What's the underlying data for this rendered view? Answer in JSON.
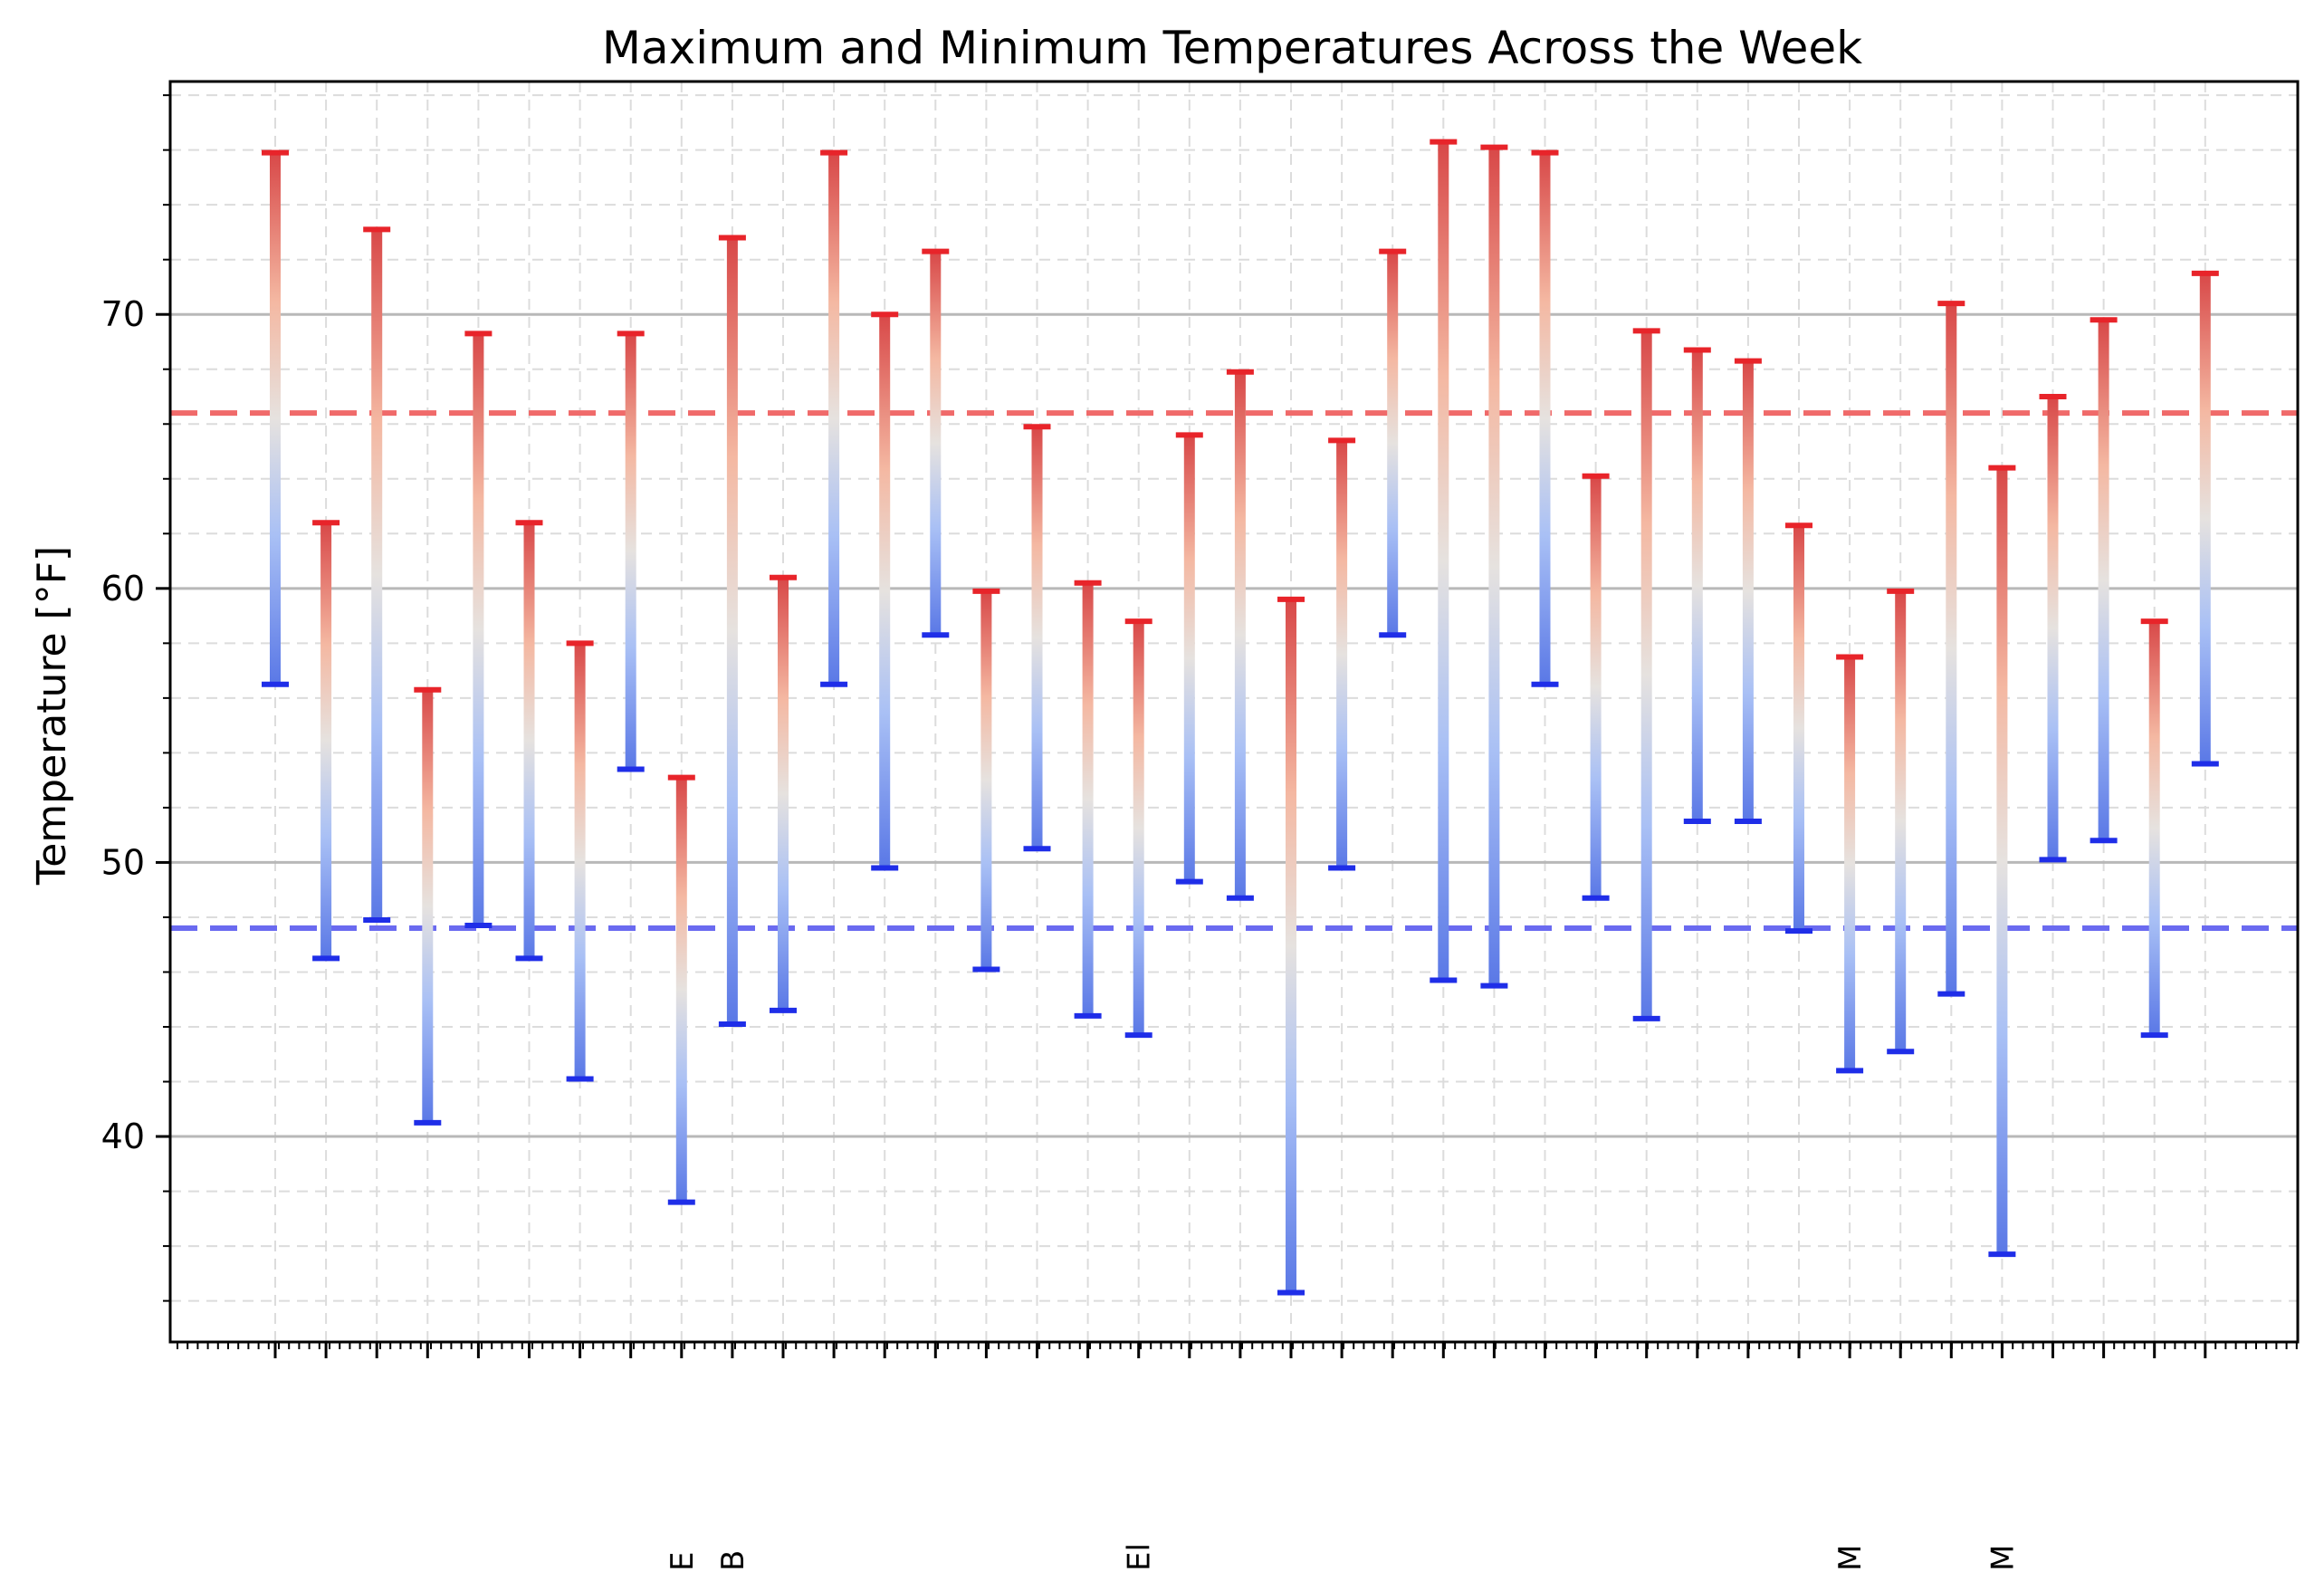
{
  "chart_data": {
    "type": "bar",
    "chart_style": "floating range bars with blue-to-red gradient",
    "title": "Maximum and Minimum Temperatures Across the Week",
    "xlabel": "",
    "ylabel": "Temperature [°F]",
    "ylim": [
      32.5,
      78.5
    ],
    "yticks": [
      40,
      50,
      60,
      70
    ],
    "grid": true,
    "legend": "none",
    "colors": {
      "max_cap": "#e8242a",
      "min_cap": "#1f2ee8",
      "max_mean_line": "#f06a6a",
      "min_mean_line": "#6a6af0",
      "gradient_low": "#5a78e6",
      "gradient_mid": "#dcdcdc",
      "gradient_high": "#d84848"
    },
    "categories": [
      "",
      "",
      "",
      "",
      "",
      "",
      "",
      "",
      "E",
      "B",
      "",
      "",
      "",
      "",
      "",
      "",
      "",
      "El",
      "",
      "",
      "",
      "",
      "",
      "",
      "",
      "",
      "",
      "",
      "",
      "",
      "",
      "M",
      "",
      "",
      "M",
      "",
      "",
      "",
      ""
    ],
    "series": [
      {
        "values": [
          75.9,
          62.4,
          73.1,
          56.3,
          69.3,
          62.4,
          58.0,
          69.3,
          53.1,
          72.8,
          60.4,
          75.9,
          70.0,
          72.3,
          59.9,
          65.9,
          60.2,
          58.8,
          65.6,
          67.9,
          59.6,
          65.4,
          72.3,
          76.3,
          76.1,
          75.9,
          64.1,
          69.4,
          68.7,
          68.3,
          62.3,
          57.5,
          59.9,
          70.4,
          64.4,
          67.0,
          69.8,
          58.8,
          71.5
        ]
      },
      {
        "values": [
          56.5,
          46.5,
          47.9,
          40.5,
          47.7,
          46.5,
          42.1,
          53.4,
          37.6,
          44.1,
          44.6,
          56.5,
          49.8,
          58.3,
          46.1,
          50.5,
          44.4,
          43.7,
          49.3,
          48.7,
          34.3,
          49.8,
          58.3,
          45.7,
          45.5,
          56.5,
          48.7,
          44.3,
          51.5,
          51.5,
          47.5,
          42.4,
          43.1,
          45.2,
          35.7,
          50.1,
          50.8,
          43.7,
          53.6
        ]
      }
    ],
    "reference_lines": [
      {
        "value": 66.4,
        "color": "#f06a6a"
      },
      {
        "value": 47.6,
        "color": "#6a6af0"
      }
    ]
  }
}
